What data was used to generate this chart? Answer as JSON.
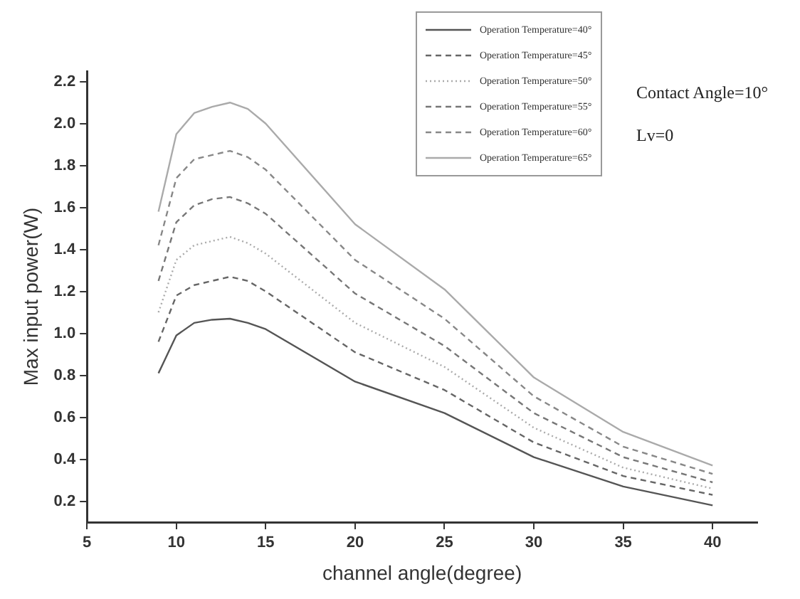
{
  "chart_data": {
    "type": "line",
    "xlabel": "channel angle(degree)",
    "ylabel": "Max input power(W)",
    "annotations": [
      "Contact Angle=10°",
      "Lv=0"
    ],
    "x": [
      9,
      10,
      11,
      12,
      13,
      14,
      15,
      20,
      25,
      30,
      35,
      40
    ],
    "xlim": [
      5,
      42.5
    ],
    "xticks": [
      5,
      10,
      15,
      20,
      25,
      30,
      35,
      40
    ],
    "ylim": [
      0.1,
      2.25
    ],
    "yticks": [
      0.2,
      0.4,
      0.6,
      0.8,
      {
        "value": 1,
        "label": "1.0"
      },
      1.2,
      1.4,
      1.6,
      1.8,
      {
        "value": 2,
        "label": "2.0"
      },
      2.2
    ],
    "grid": false,
    "legend": "top right",
    "marker": "none",
    "series": [
      {
        "name": "Operation Temperature=40°",
        "color": "#555555",
        "line_style": "solid",
        "values": [
          0.81,
          0.99,
          1.05,
          1.065,
          1.07,
          1.05,
          1.02,
          0.77,
          0.62,
          0.41,
          0.27,
          0.18
        ]
      },
      {
        "name": "Operation Temperature=45°",
        "color": "#666666",
        "line_style": "dashed",
        "values": [
          0.96,
          1.18,
          1.23,
          1.25,
          1.27,
          1.25,
          1.2,
          0.91,
          0.73,
          0.48,
          0.32,
          0.23
        ]
      },
      {
        "name": "Operation Temperature=50°",
        "color": "#aaaaaa",
        "line_style": "dotted",
        "values": [
          1.1,
          1.35,
          1.42,
          1.44,
          1.46,
          1.43,
          1.38,
          1.05,
          0.84,
          0.55,
          0.36,
          0.26
        ]
      },
      {
        "name": "Operation Temperature=55°",
        "color": "#777777",
        "line_style": "dashed",
        "values": [
          1.25,
          1.53,
          1.61,
          1.64,
          1.65,
          1.62,
          1.57,
          1.19,
          0.94,
          0.62,
          0.41,
          0.29
        ]
      },
      {
        "name": "Operation Temperature=60°",
        "color": "#888888",
        "line_style": "dashed",
        "values": [
          1.42,
          1.74,
          1.83,
          1.85,
          1.87,
          1.84,
          1.78,
          1.35,
          1.07,
          0.7,
          0.46,
          0.33
        ]
      },
      {
        "name": "Operation Temperature=65°",
        "color": "#aaaaaa",
        "line_style": "solid",
        "values": [
          1.58,
          1.95,
          2.05,
          2.08,
          2.1,
          2.07,
          2,
          1.52,
          1.21,
          0.79,
          0.53,
          0.37
        ]
      }
    ]
  }
}
